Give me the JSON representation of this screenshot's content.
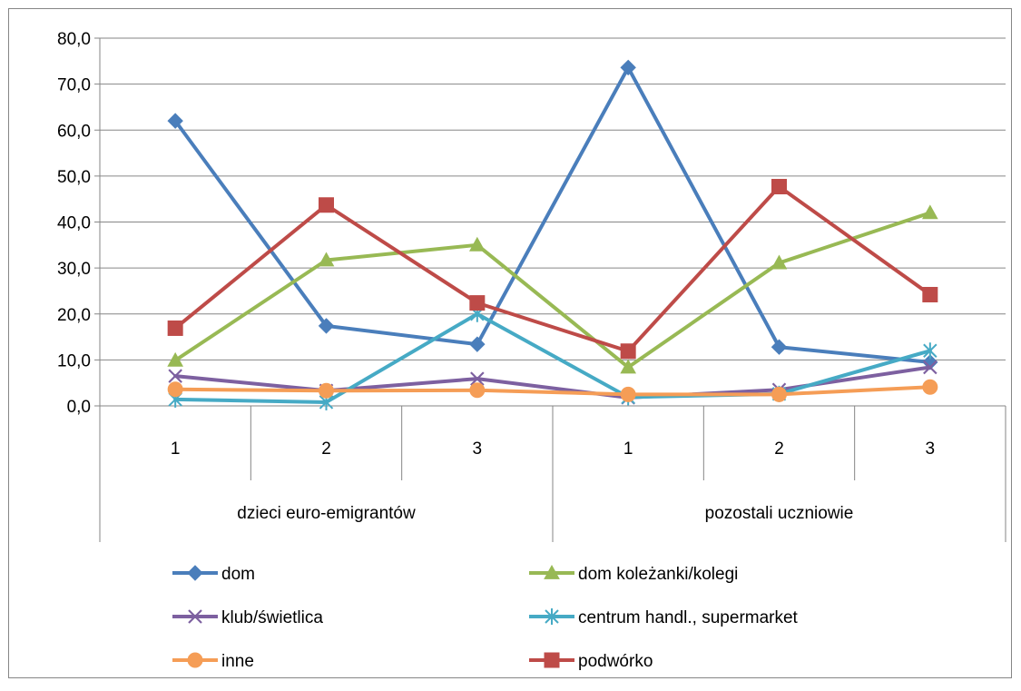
{
  "chart_data": {
    "type": "line",
    "title": "",
    "xlabel": "",
    "ylabel": "",
    "ylim": [
      0,
      80
    ],
    "y_ticks": [
      "0,0",
      "10,0",
      "20,0",
      "30,0",
      "40,0",
      "50,0",
      "60,0",
      "70,0",
      "80,0"
    ],
    "categories": [
      "1",
      "2",
      "3",
      "1",
      "2",
      "3"
    ],
    "groups": [
      {
        "label": "dzieci euro-emigrantów",
        "categories": [
          "1",
          "2",
          "3"
        ]
      },
      {
        "label": "pozostali uczniowie",
        "categories": [
          "1",
          "2",
          "3"
        ]
      }
    ],
    "grid": true,
    "legend_position": "bottom",
    "series": [
      {
        "name": "dom",
        "color": "#4A7EBB",
        "marker": "diamond",
        "values": [
          62.0,
          17.4,
          13.4,
          73.6,
          12.8,
          9.5
        ]
      },
      {
        "name": "dom koleżanki/kolegi",
        "color": "#98B954",
        "marker": "triangle",
        "values": [
          9.9,
          31.7,
          35.0,
          8.4,
          31.1,
          42.0
        ]
      },
      {
        "name": "klub/świetlica",
        "color": "#7D60A0",
        "marker": "x",
        "values": [
          6.5,
          3.3,
          5.9,
          1.8,
          3.5,
          8.4
        ]
      },
      {
        "name": "centrum handl., supermarket",
        "color": "#46AAC5",
        "marker": "star",
        "values": [
          1.4,
          0.8,
          20.0,
          1.9,
          2.6,
          12.0
        ]
      },
      {
        "name": "inne",
        "color": "#F59D56",
        "marker": "circle",
        "values": [
          3.6,
          3.3,
          3.4,
          2.5,
          2.5,
          4.1
        ]
      },
      {
        "name": "podwórko",
        "color": "#BE4B48",
        "marker": "square",
        "values": [
          16.9,
          43.7,
          22.4,
          11.9,
          47.7,
          24.2
        ]
      }
    ]
  }
}
